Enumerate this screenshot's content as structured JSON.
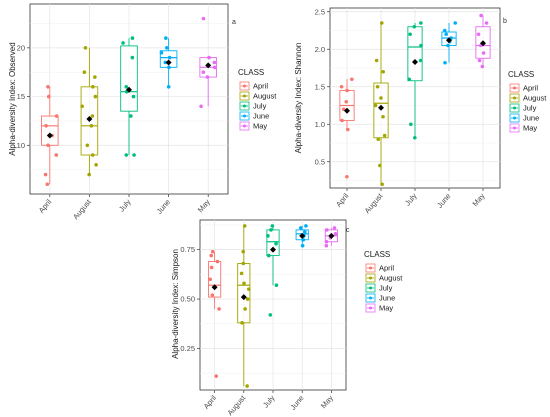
{
  "chart_data": [
    {
      "type": "box",
      "panel_label": "a",
      "ylabel": "Alpha-diversity Index: Observed",
      "categories": [
        "April",
        "August",
        "July",
        "June",
        "May"
      ],
      "colors": [
        "#F8766D",
        "#A3A500",
        "#00BF7D",
        "#00B0F6",
        "#E76BF3"
      ],
      "ylim": [
        5,
        24.5
      ],
      "yticks": [
        10,
        15,
        20
      ],
      "ytick_labels": [
        "10",
        "15",
        "20"
      ],
      "legend": {
        "title": "CLASS",
        "position": "right",
        "items": [
          "April",
          "August",
          "July",
          "June",
          "May"
        ]
      },
      "boxes": [
        {
          "min": 6,
          "q1": 10,
          "median": 12,
          "q3": 13,
          "max": 16,
          "mean": 11
        },
        {
          "min": 7,
          "q1": 9,
          "median": 12,
          "q3": 16,
          "max": 20,
          "mean": 12.7
        },
        {
          "min": 9,
          "q1": 13.5,
          "median": 15.5,
          "q3": 20.2,
          "max": 21,
          "mean": 15.7
        },
        {
          "min": 16,
          "q1": 18,
          "median": 19,
          "q3": 19.7,
          "max": 21,
          "mean": 18.5
        },
        {
          "min": 14,
          "q1": 17,
          "median": 18,
          "q3": 19,
          "max": 19,
          "mean": 18.2
        }
      ],
      "points": [
        [
          6,
          7,
          9,
          10,
          11,
          12,
          13,
          15,
          16
        ],
        [
          7,
          8,
          9,
          10,
          12,
          13,
          14,
          15,
          16,
          17,
          17.5,
          20
        ],
        [
          9,
          9,
          13,
          15,
          15.5,
          16,
          19,
          20.5,
          21
        ],
        [
          16,
          18,
          18.5,
          19,
          19.5,
          20,
          21
        ],
        [
          14,
          17,
          17.5,
          18,
          18.5,
          19,
          23
        ]
      ]
    },
    {
      "type": "box",
      "panel_label": "b",
      "ylabel": "Alpha-diversity Index: Shannon",
      "categories": [
        "April",
        "August",
        "July",
        "June",
        "May"
      ],
      "colors": [
        "#F8766D",
        "#A3A500",
        "#00BF7D",
        "#00B0F6",
        "#E76BF3"
      ],
      "ylim": [
        0.15,
        2.55
      ],
      "yticks": [
        0.5,
        1.0,
        1.5,
        2.0,
        2.5
      ],
      "ytick_labels": [
        "0.5",
        "1.0",
        "1.5",
        "2.0",
        "2.5"
      ],
      "legend": {
        "title": "CLASS",
        "position": "right",
        "items": [
          "April",
          "August",
          "July",
          "June",
          "May"
        ]
      },
      "boxes": [
        {
          "min": 0.93,
          "q1": 1.05,
          "median": 1.25,
          "q3": 1.45,
          "max": 1.6,
          "mean": 1.18
        },
        {
          "min": 0.2,
          "q1": 0.82,
          "median": 1.28,
          "q3": 1.55,
          "max": 2.35,
          "mean": 1.22
        },
        {
          "min": 0.82,
          "q1": 1.58,
          "median": 2.03,
          "q3": 2.3,
          "max": 2.35,
          "mean": 1.83
        },
        {
          "min": 1.82,
          "q1": 2.05,
          "median": 2.15,
          "q3": 2.23,
          "max": 2.35,
          "mean": 2.12
        },
        {
          "min": 1.77,
          "q1": 1.88,
          "median": 2.05,
          "q3": 2.3,
          "max": 2.45,
          "mean": 2.08
        }
      ],
      "points": [
        [
          0.3,
          0.93,
          1.05,
          1.2,
          1.3,
          1.45,
          1.5,
          1.6
        ],
        [
          0.2,
          0.45,
          0.8,
          0.85,
          1.1,
          1.25,
          1.35,
          1.5,
          1.7,
          1.85,
          2.35
        ],
        [
          0.82,
          1.0,
          1.6,
          1.85,
          2.05,
          2.2,
          2.3,
          2.35
        ],
        [
          1.82,
          2.05,
          2.1,
          2.15,
          2.2,
          2.25,
          2.35
        ],
        [
          1.77,
          1.85,
          1.95,
          2.05,
          2.2,
          2.35,
          2.45
        ]
      ]
    },
    {
      "type": "box",
      "panel_label": "c",
      "ylabel": "Alpha-diversity Index: Simpson",
      "categories": [
        "April",
        "August",
        "July",
        "June",
        "May"
      ],
      "colors": [
        "#F8766D",
        "#A3A500",
        "#00BF7D",
        "#00B0F6",
        "#E76BF3"
      ],
      "ylim": [
        0.04,
        0.9
      ],
      "yticks": [
        0.25,
        0.5,
        0.75
      ],
      "ytick_labels": [
        "0.25",
        "0.50",
        "0.75"
      ],
      "legend": {
        "title": "CLASS",
        "position": "right",
        "items": [
          "April",
          "August",
          "July",
          "June",
          "May"
        ]
      },
      "boxes": [
        {
          "min": 0.45,
          "q1": 0.51,
          "median": 0.57,
          "q3": 0.69,
          "max": 0.74,
          "mean": 0.56
        },
        {
          "min": 0.06,
          "q1": 0.38,
          "median": 0.57,
          "q3": 0.68,
          "max": 0.87,
          "mean": 0.51
        },
        {
          "min": 0.57,
          "q1": 0.72,
          "median": 0.79,
          "q3": 0.85,
          "max": 0.87,
          "mean": 0.75
        },
        {
          "min": 0.77,
          "q1": 0.8,
          "median": 0.83,
          "q3": 0.85,
          "max": 0.87,
          "mean": 0.82
        },
        {
          "min": 0.77,
          "q1": 0.79,
          "median": 0.82,
          "q3": 0.85,
          "max": 0.86,
          "mean": 0.82
        }
      ],
      "points": [
        [
          0.11,
          0.45,
          0.52,
          0.6,
          0.66,
          0.69,
          0.72,
          0.74
        ],
        [
          0.06,
          0.38,
          0.45,
          0.5,
          0.55,
          0.58,
          0.63,
          0.68,
          0.74,
          0.87
        ],
        [
          0.42,
          0.57,
          0.72,
          0.78,
          0.82,
          0.85,
          0.87
        ],
        [
          0.77,
          0.8,
          0.82,
          0.84,
          0.86,
          0.87
        ],
        [
          0.77,
          0.79,
          0.81,
          0.83,
          0.85,
          0.86
        ]
      ]
    }
  ]
}
